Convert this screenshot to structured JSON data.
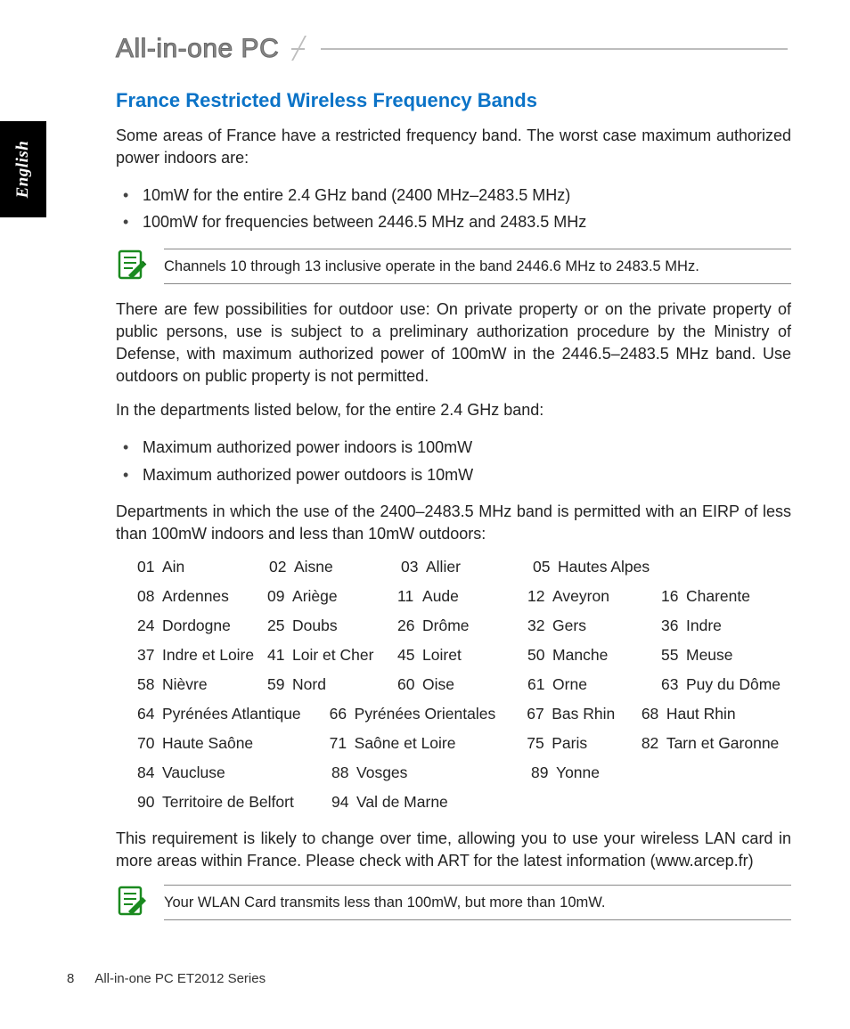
{
  "header": {
    "series_title": "All-in-one PC"
  },
  "lang_tab": "English",
  "section_title": "France Restricted Wireless Frequency Bands",
  "intro": "Some areas of France have a restricted frequency band. The worst case maximum authorized power indoors are:",
  "intro_bullets": [
    "10mW for the entire 2.4 GHz band (2400 MHz–2483.5 MHz)",
    "100mW for frequencies between 2446.5 MHz and 2483.5 MHz"
  ],
  "note1": "Channels 10 through 13 inclusive operate in the band 2446.6 MHz to 2483.5 MHz.",
  "para2": "There are few possibilities for outdoor use: On private property or on the private property of public persons, use is subject to a preliminary authorization procedure by the Ministry of Defense, with maximum authorized power of 100mW in the 2446.5–2483.5 MHz band. Use outdoors on public property is not permitted.",
  "para3": "In the departments listed below, for the entire 2.4 GHz band:",
  "para3_bullets": [
    "Maximum authorized power indoors is 100mW",
    "Maximum authorized power outdoors is 10mW"
  ],
  "para4": "Departments in which the use of the 2400–2483.5 MHz band is permitted with an EIRP of less than 100mW indoors and less than 10mW outdoors:",
  "departments": {
    "layout": [
      {
        "variant": "A",
        "cells": [
          {
            "num": "01",
            "name": "Ain"
          },
          {
            "num": "02",
            "name": "Aisne"
          },
          {
            "num": "03",
            "name": "Allier"
          },
          {
            "num": "05",
            "name": "Hautes Alpes"
          }
        ]
      },
      {
        "variant": "A",
        "cells": [
          {
            "num": "08",
            "name": "Ardennes"
          },
          {
            "num": "09",
            "name": "Ariège"
          },
          {
            "num": "11",
            "name": "Aude"
          },
          {
            "num": "12",
            "name": "Aveyron"
          },
          {
            "num": "16",
            "name": "Charente"
          }
        ]
      },
      {
        "variant": "A",
        "cells": [
          {
            "num": "24",
            "name": "Dordogne"
          },
          {
            "num": "25",
            "name": "Doubs"
          },
          {
            "num": "26",
            "name": "Drôme"
          },
          {
            "num": "32",
            "name": "Gers"
          },
          {
            "num": "36",
            "name": "Indre"
          }
        ]
      },
      {
        "variant": "A",
        "cells": [
          {
            "num": "37",
            "name": "Indre et Loire"
          },
          {
            "num": "41",
            "name": "Loir et Cher"
          },
          {
            "num": "45",
            "name": "Loiret"
          },
          {
            "num": "50",
            "name": "Manche"
          },
          {
            "num": "55",
            "name": "Meuse"
          }
        ]
      },
      {
        "variant": "A",
        "cells": [
          {
            "num": "58",
            "name": "Nièvre"
          },
          {
            "num": "59",
            "name": "Nord"
          },
          {
            "num": "60",
            "name": "Oise"
          },
          {
            "num": "61",
            "name": "Orne"
          },
          {
            "num": "63",
            "name": "Puy du Dôme"
          }
        ]
      },
      {
        "variant": "B",
        "cells": [
          {
            "num": "64",
            "name": "Pyrénées Atlantique"
          },
          {
            "num": "66",
            "name": "Pyrénées Orientales"
          },
          {
            "num": "67",
            "name": "Bas Rhin"
          },
          {
            "num": "68",
            "name": "Haut Rhin"
          }
        ]
      },
      {
        "variant": "B",
        "cells": [
          {
            "num": "70",
            "name": "Haute Saône"
          },
          {
            "num": "71",
            "name": "Saône et Loire"
          },
          {
            "num": "75",
            "name": "Paris"
          },
          {
            "num": "82",
            "name": "Tarn et Garonne"
          }
        ]
      },
      {
        "variant": "B",
        "cells": [
          {
            "num": "84",
            "name": "Vaucluse"
          },
          {
            "num": "88",
            "name": "Vosges"
          },
          {
            "num": "89",
            "name": "Yonne"
          }
        ]
      },
      {
        "variant": "B",
        "cells": [
          {
            "num": "90",
            "name": "Territoire de Belfort"
          },
          {
            "num": "94",
            "name": "Val de Marne"
          }
        ]
      }
    ]
  },
  "para5": "This requirement is likely to change over time, allowing you to use your wireless LAN card in more areas within France. Please check with ART for the latest information (www.arcep.fr)",
  "note2": "Your WLAN Card transmits less than 100mW, but more than 10mW.",
  "footer": {
    "page": "8",
    "title": "All-in-one PC ET2012 Series"
  },
  "colors": {
    "heading": "#0b73c7",
    "note_icon_stroke": "#1a8a1f",
    "rule": "#bdbdbd"
  }
}
